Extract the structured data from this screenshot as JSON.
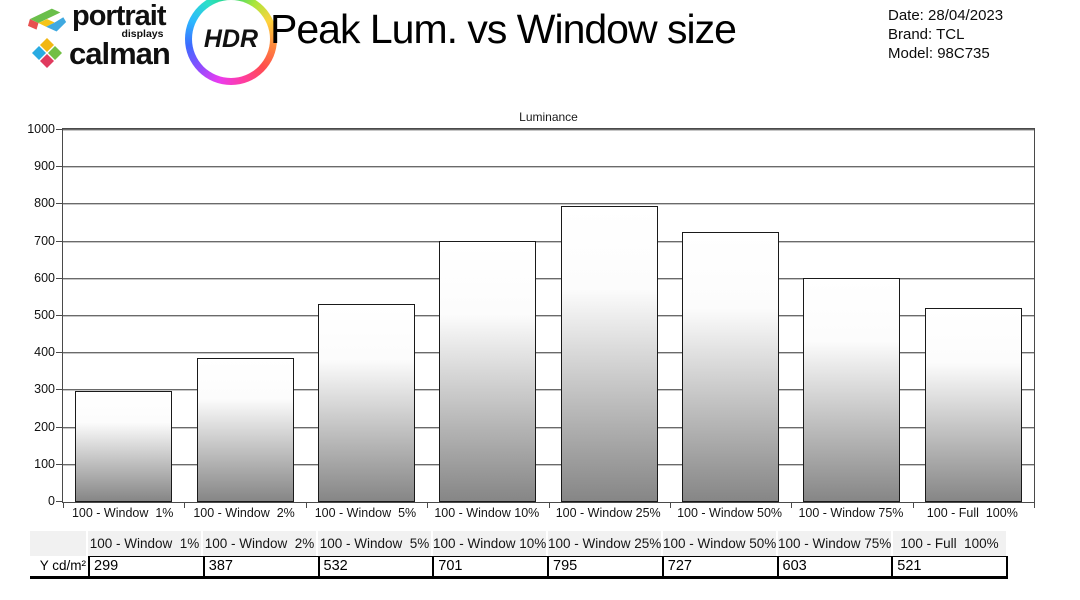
{
  "header": {
    "logo": {
      "portrait": "portrait",
      "displays": "displays",
      "calman": "calman",
      "hdr": "HDR"
    },
    "title": "Peak Lum. vs Window size",
    "meta": {
      "date": "Date: 28/04/2023",
      "brand": "Brand: TCL",
      "model": "Model: 98C735"
    }
  },
  "chart_data": {
    "type": "bar",
    "title": "Luminance",
    "categories": [
      "100 - Window  1%",
      "100 - Window  2%",
      "100 - Window  5%",
      "100 - Window 10%",
      "100 - Window 25%",
      "100 - Window 50%",
      "100 - Window 75%",
      "100 - Full  100%"
    ],
    "values": [
      299,
      387,
      532,
      701,
      795,
      727,
      603,
      521
    ],
    "xlabel": "",
    "ylabel": "",
    "ylim": [
      0,
      1000
    ],
    "ytick_step": 100,
    "grid": true,
    "legend_position": "none",
    "bar_fill_top": "#ffffff",
    "bar_fill_bottom": "#868686",
    "bar_border_color": "#1a1a1a"
  },
  "table": {
    "row_label": "Y cd/m²",
    "columns": [
      "100 - Window  1%",
      "100 - Window  2%",
      "100 - Window  5%",
      "100 - Window 10%",
      "100 - Window 25%",
      "100 - Window 50%",
      "100 - Window 75%",
      "100 - Full  100%"
    ],
    "values": [
      "299",
      "387",
      "532",
      "701",
      "795",
      "727",
      "603",
      "521"
    ]
  }
}
